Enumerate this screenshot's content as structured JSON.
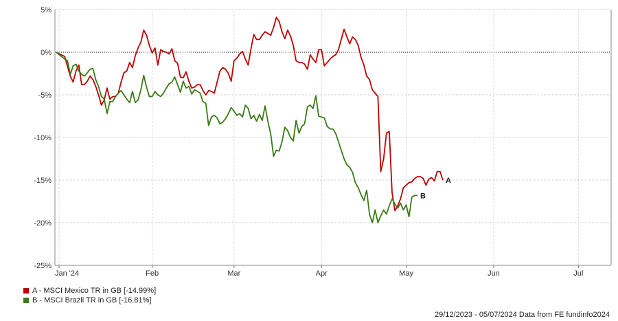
{
  "chart_data": {
    "type": "line",
    "ylim": [
      -25,
      5
    ],
    "y_ticks": [
      5,
      0,
      -5,
      -10,
      -15,
      -20,
      -25
    ],
    "y_tick_labels": [
      "5%",
      "0%",
      "-5%",
      "-10%",
      "-15%",
      "-20%",
      "-25%"
    ],
    "x_range": [
      0,
      188
    ],
    "x_ticks": [
      {
        "label": "Jan '24",
        "x": 0
      },
      {
        "label": "Feb",
        "x": 33
      },
      {
        "label": "Mar",
        "x": 62
      },
      {
        "label": "Apr",
        "x": 93
      },
      {
        "label": "May",
        "x": 123
      },
      {
        "label": "Jun",
        "x": 154
      },
      {
        "label": "Jul",
        "x": 184
      }
    ],
    "grid": true,
    "zero_line": "dotted",
    "legend_position": "bottom-left",
    "series": [
      {
        "name": "A - MSCI Mexico TR in GB [-14.99%]",
        "end_label": "A",
        "color": "#c00000",
        "points": [
          [
            -1,
            0
          ],
          [
            2,
            -0.5
          ],
          [
            4,
            -2.8
          ],
          [
            5,
            -3.5
          ],
          [
            6,
            -2.2
          ],
          [
            7,
            -1.5
          ],
          [
            8,
            -3.8
          ],
          [
            9,
            -3.8
          ],
          [
            10,
            -3.4
          ],
          [
            11,
            -2.8
          ],
          [
            12,
            -3.2
          ],
          [
            13,
            -4.0
          ],
          [
            14,
            -5.0
          ],
          [
            15,
            -6.2
          ],
          [
            16,
            -5.6
          ],
          [
            17,
            -4.2
          ],
          [
            18,
            -5.5
          ],
          [
            19,
            -5.2
          ],
          [
            20,
            -5.2
          ],
          [
            21,
            -4.8
          ],
          [
            22,
            -3.5
          ],
          [
            23,
            -2.4
          ],
          [
            24,
            -2.2
          ],
          [
            25,
            -1.2
          ],
          [
            26,
            -1.8
          ],
          [
            27,
            -0.4
          ],
          [
            28,
            0.5
          ],
          [
            29,
            1.2
          ],
          [
            30,
            2.6
          ],
          [
            31,
            2.0
          ],
          [
            32,
            0.8
          ],
          [
            33,
            -0.1
          ],
          [
            34,
            0.5
          ],
          [
            35,
            -1.5
          ],
          [
            36,
            0.3
          ],
          [
            37,
            0.1
          ],
          [
            38,
            0
          ],
          [
            39,
            -0.2
          ],
          [
            40,
            0.4
          ],
          [
            41,
            -1.0
          ],
          [
            42,
            -1.3
          ],
          [
            43,
            -2.9
          ],
          [
            44,
            -3.0
          ],
          [
            45,
            -2.3
          ],
          [
            46,
            -3.4
          ],
          [
            47,
            -4.2
          ],
          [
            48,
            -4.1
          ],
          [
            49,
            -3.8
          ],
          [
            50,
            -3.8
          ],
          [
            51,
            -4.5
          ],
          [
            52,
            -5.0
          ],
          [
            53,
            -4.5
          ],
          [
            54,
            -4.6
          ],
          [
            55,
            -4.8
          ],
          [
            56,
            -3.5
          ],
          [
            57,
            -2.2
          ],
          [
            58,
            -1.8
          ],
          [
            59,
            -2.0
          ],
          [
            60,
            -2.5
          ],
          [
            61,
            -3.4
          ],
          [
            62,
            -1.0
          ],
          [
            63,
            -0.7
          ],
          [
            64,
            -0.2
          ],
          [
            65,
            0.1
          ],
          [
            66,
            -0.8
          ],
          [
            67,
            -1.5
          ],
          [
            68,
            0.4
          ],
          [
            69,
            2.1
          ],
          [
            70,
            1.5
          ],
          [
            71,
            1.5
          ],
          [
            72,
            2.0
          ],
          [
            73,
            2.4
          ],
          [
            74,
            2.2
          ],
          [
            75,
            2.0
          ],
          [
            76,
            2.9
          ],
          [
            77,
            4.1
          ],
          [
            78,
            3.6
          ],
          [
            79,
            2.4
          ],
          [
            80,
            1.6
          ],
          [
            81,
            2.6
          ],
          [
            82,
            1.9
          ],
          [
            83,
            0.8
          ],
          [
            84,
            -1.0
          ],
          [
            85,
            -1.2
          ],
          [
            86,
            -1.2
          ],
          [
            87,
            -1.4
          ],
          [
            88,
            -2.0
          ],
          [
            89,
            -0.3
          ],
          [
            90,
            -0.8
          ],
          [
            91,
            -1.2
          ],
          [
            92,
            0.3
          ],
          [
            93,
            0.3
          ],
          [
            94,
            -1.6
          ],
          [
            95,
            -1.2
          ],
          [
            96,
            -0.8
          ],
          [
            97,
            -0.5
          ],
          [
            98,
            -0.3
          ],
          [
            99,
            0.3
          ],
          [
            100,
            1.5
          ],
          [
            101,
            2.7
          ],
          [
            102,
            1.8
          ],
          [
            103,
            1.0
          ],
          [
            104,
            1.8
          ],
          [
            105,
            1.5
          ],
          [
            106,
            0.8
          ],
          [
            107,
            -0.6
          ],
          [
            108,
            -1.5
          ],
          [
            109,
            -2.8
          ],
          [
            110,
            -3.2
          ],
          [
            111,
            -4.4
          ],
          [
            112,
            -4.8
          ],
          [
            113,
            -5.2
          ],
          [
            114,
            -14.0
          ],
          [
            115,
            -12.5
          ],
          [
            116,
            -9.5
          ],
          [
            117,
            -9.3
          ],
          [
            118,
            -16.5
          ],
          [
            119,
            -18.6
          ],
          [
            120,
            -18.0
          ],
          [
            121,
            -17.2
          ],
          [
            122,
            -15.9
          ],
          [
            123,
            -15.6
          ],
          [
            124,
            -15.3
          ],
          [
            125,
            -15.2
          ],
          [
            126,
            -14.8
          ],
          [
            127,
            -14.6
          ],
          [
            128,
            -14.6
          ],
          [
            129,
            -14.8
          ],
          [
            130,
            -15.6
          ],
          [
            131,
            -14.9
          ],
          [
            132,
            -14.7
          ],
          [
            133,
            -15.1
          ],
          [
            134,
            -14.0
          ],
          [
            135,
            -14.0
          ],
          [
            136,
            -15.0
          ]
        ]
      },
      {
        "name": "B - MSCI Brazil TR in GB [-16.81%]",
        "end_label": "B",
        "color": "#3a7a17",
        "points": [
          [
            -1,
            0
          ],
          [
            2,
            -0.8
          ],
          [
            3,
            -1.0
          ],
          [
            4,
            -2.6
          ],
          [
            5,
            -1.6
          ],
          [
            6,
            -1.4
          ],
          [
            7,
            -2.2
          ],
          [
            8,
            -2.6
          ],
          [
            9,
            -2.8
          ],
          [
            10,
            -2.4
          ],
          [
            11,
            -2.0
          ],
          [
            12,
            -1.9
          ],
          [
            13,
            -3.2
          ],
          [
            14,
            -4.0
          ],
          [
            15,
            -5.2
          ],
          [
            16,
            -5.5
          ],
          [
            17,
            -7.2
          ],
          [
            18,
            -5.8
          ],
          [
            19,
            -5.8
          ],
          [
            20,
            -5.2
          ],
          [
            21,
            -4.8
          ],
          [
            22,
            -4.5
          ],
          [
            23,
            -5.0
          ],
          [
            24,
            -5.5
          ],
          [
            25,
            -5.9
          ],
          [
            26,
            -4.6
          ],
          [
            27,
            -5.9
          ],
          [
            28,
            -5.6
          ],
          [
            29,
            -4.4
          ],
          [
            30,
            -2.7
          ],
          [
            31,
            -4.1
          ],
          [
            32,
            -5.2
          ],
          [
            33,
            -5.2
          ],
          [
            34,
            -4.6
          ],
          [
            35,
            -5.0
          ],
          [
            36,
            -5.2
          ],
          [
            37,
            -4.8
          ],
          [
            38,
            -4.2
          ],
          [
            39,
            -3.7
          ],
          [
            40,
            -3.5
          ],
          [
            41,
            -2.9
          ],
          [
            42,
            -3.8
          ],
          [
            43,
            -4.7
          ],
          [
            44,
            -3.4
          ],
          [
            45,
            -4.2
          ],
          [
            46,
            -4.0
          ],
          [
            47,
            -4.9
          ],
          [
            48,
            -4.4
          ],
          [
            49,
            -4.6
          ],
          [
            50,
            -4.8
          ],
          [
            51,
            -5.8
          ],
          [
            52,
            -6.0
          ],
          [
            53,
            -8.6
          ],
          [
            54,
            -7.6
          ],
          [
            55,
            -7.4
          ],
          [
            56,
            -7.7
          ],
          [
            57,
            -8.4
          ],
          [
            58,
            -8.2
          ],
          [
            59,
            -7.8
          ],
          [
            60,
            -7.2
          ],
          [
            61,
            -6.5
          ],
          [
            62,
            -6.9
          ],
          [
            63,
            -7.4
          ],
          [
            64,
            -7.2
          ],
          [
            65,
            -7.6
          ],
          [
            66,
            -6.2
          ],
          [
            67,
            -6.6
          ],
          [
            68,
            -7.8
          ],
          [
            69,
            -7.4
          ],
          [
            70,
            -8.1
          ],
          [
            71,
            -7.3
          ],
          [
            72,
            -8.0
          ],
          [
            73,
            -6.3
          ],
          [
            74,
            -8.1
          ],
          [
            75,
            -9.6
          ],
          [
            76,
            -12.2
          ],
          [
            77,
            -11.5
          ],
          [
            78,
            -11.6
          ],
          [
            79,
            -10.5
          ],
          [
            80,
            -8.8
          ],
          [
            81,
            -9.2
          ],
          [
            82,
            -10.0
          ],
          [
            83,
            -10.4
          ],
          [
            84,
            -8.0
          ],
          [
            85,
            -9.5
          ],
          [
            86,
            -8.7
          ],
          [
            87,
            -8.4
          ],
          [
            88,
            -6.4
          ],
          [
            89,
            -6.2
          ],
          [
            90,
            -6.6
          ],
          [
            91,
            -5.1
          ],
          [
            92,
            -7.5
          ],
          [
            93,
            -7.6
          ],
          [
            94,
            -7.7
          ],
          [
            95,
            -8.7
          ],
          [
            96,
            -9.0
          ],
          [
            97,
            -9.0
          ],
          [
            98,
            -9.5
          ],
          [
            99,
            -10.5
          ],
          [
            100,
            -11.5
          ],
          [
            101,
            -12.5
          ],
          [
            102,
            -13.2
          ],
          [
            103,
            -13.5
          ],
          [
            104,
            -14.1
          ],
          [
            105,
            -15.3
          ],
          [
            106,
            -15.9
          ],
          [
            107,
            -16.7
          ],
          [
            108,
            -17.4
          ],
          [
            109,
            -16.2
          ],
          [
            110,
            -19.0
          ],
          [
            111,
            -20.0
          ],
          [
            112,
            -18.5
          ],
          [
            113,
            -20.0
          ],
          [
            114,
            -19.2
          ],
          [
            115,
            -18.5
          ],
          [
            116,
            -19.0
          ],
          [
            117,
            -18.0
          ],
          [
            118,
            -17.2
          ],
          [
            119,
            -17.8
          ],
          [
            120,
            -18.3
          ],
          [
            121,
            -17.7
          ],
          [
            122,
            -18.5
          ],
          [
            123,
            -17.9
          ],
          [
            124,
            -19.3
          ],
          [
            125,
            -17.0
          ],
          [
            126,
            -16.8
          ],
          [
            127,
            -16.8
          ]
        ]
      }
    ]
  },
  "footer_text": "29/12/2023 - 05/07/2024 Data from FE fundinfo2024"
}
